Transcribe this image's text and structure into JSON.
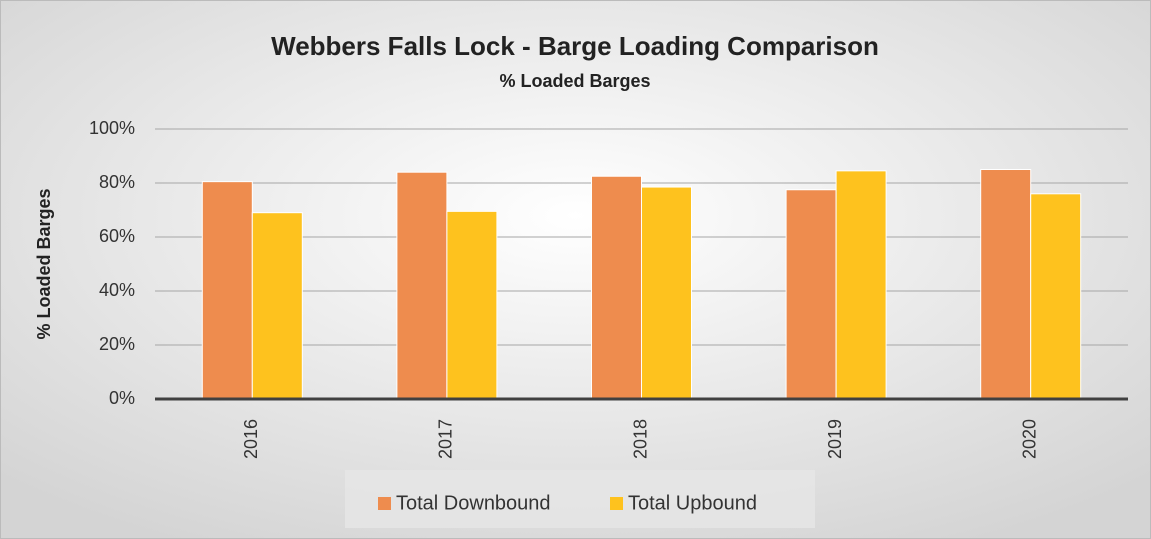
{
  "chart_data": {
    "type": "bar",
    "title": "Webbers Falls Lock - Barge Loading Comparison",
    "subtitle": "% Loaded Barges",
    "y_label": "% Loaded Barges",
    "categories": [
      "2016",
      "2017",
      "2018",
      "2019",
      "2020"
    ],
    "series": [
      {
        "name": "Total Downbound",
        "color": "#ee8c4e",
        "values": [
          80.5,
          84,
          82.5,
          77.5,
          85
        ]
      },
      {
        "name": "Total Upbound",
        "color": "#fec21e",
        "values": [
          69,
          69.5,
          78.5,
          84.5,
          76
        ]
      }
    ],
    "ylim": [
      0,
      100
    ],
    "yticks": [
      {
        "value": 0,
        "label": "0%"
      },
      {
        "value": 20,
        "label": "20%"
      },
      {
        "value": 40,
        "label": "40%"
      },
      {
        "value": 60,
        "label": "60%"
      },
      {
        "value": 80,
        "label": "80%"
      },
      {
        "value": 100,
        "label": "100%"
      }
    ],
    "grid": true,
    "legend": "bottom"
  }
}
